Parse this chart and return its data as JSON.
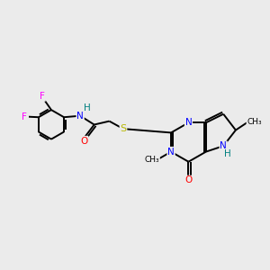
{
  "bg_color": "#ebebeb",
  "bond_color": "black",
  "bond_lw": 1.4,
  "fs": 7.5,
  "F_color": "#ff00ff",
  "N_color": "#0000ff",
  "O_color": "#ff0000",
  "S_color": "#b8b800",
  "H_color": "#008080",
  "xlim": [
    0,
    11.5
  ],
  "ylim": [
    3.8,
    9.5
  ]
}
